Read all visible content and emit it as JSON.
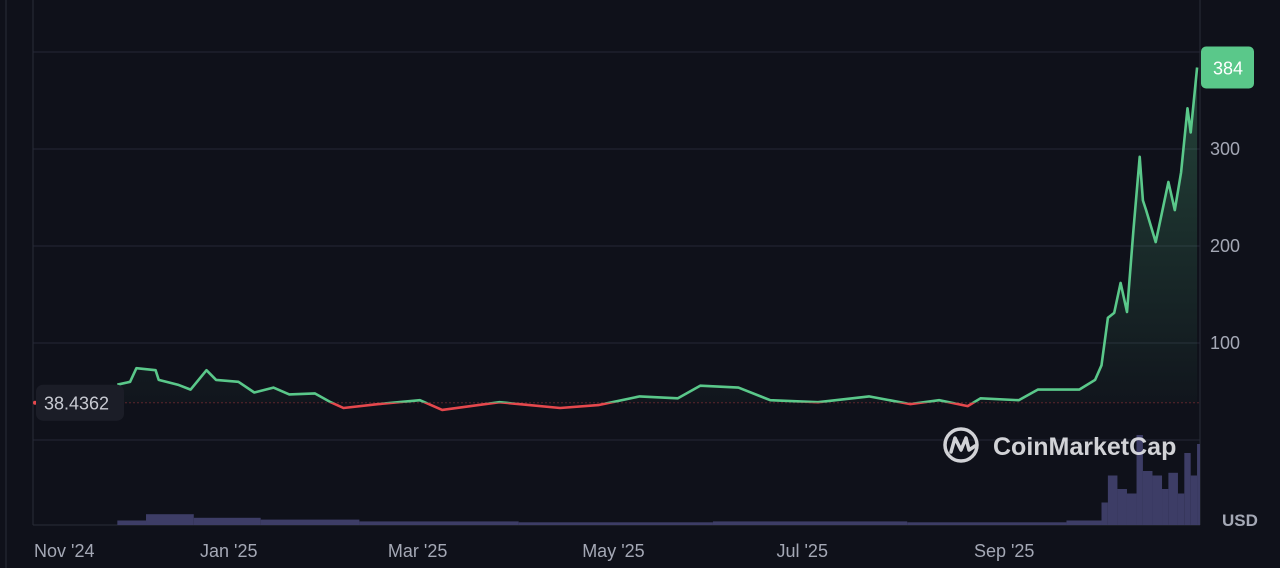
{
  "chart_data": {
    "type": "area",
    "title": "",
    "xlabel": "",
    "ylabel": "",
    "currency": "USD",
    "y_ticks": [
      100,
      200,
      300
    ],
    "ylim": [
      0,
      400
    ],
    "x_ticks": [
      {
        "date": "2024-11-01",
        "label": "Nov '24"
      },
      {
        "date": "2025-01-01",
        "label": "Jan '25"
      },
      {
        "date": "2025-03-01",
        "label": "Mar '25"
      },
      {
        "date": "2025-05-01",
        "label": "May '25"
      },
      {
        "date": "2025-07-01",
        "label": "Jul '25"
      },
      {
        "date": "2025-09-01",
        "label": "Sep '25"
      }
    ],
    "grid": true,
    "baseline_value": 38.4362,
    "baseline_label": "38.4362",
    "current_value": 384,
    "current_label": "384",
    "colors": {
      "up": "#5ac88a",
      "down": "#e5484d",
      "current_badge": "#5ac88a",
      "volume": "#3d3d66",
      "background": "#0f111a"
    },
    "series": [
      {
        "points": [
          [
            "2024-11-26",
            57
          ],
          [
            "2024-11-30",
            60
          ],
          [
            "2024-12-02",
            74
          ],
          [
            "2024-12-08",
            72
          ],
          [
            "2024-12-09",
            62
          ],
          [
            "2024-12-15",
            57
          ],
          [
            "2024-12-19",
            52
          ],
          [
            "2024-12-24",
            72
          ],
          [
            "2024-12-27",
            62
          ],
          [
            "2025-01-03",
            60
          ],
          [
            "2025-01-08",
            49
          ],
          [
            "2025-01-14",
            54
          ],
          [
            "2025-01-19",
            47
          ],
          [
            "2025-01-27",
            48
          ],
          [
            "2025-02-01",
            39
          ],
          [
            "2025-02-05",
            33
          ],
          [
            "2025-02-16",
            37
          ],
          [
            "2025-03-01",
            41
          ],
          [
            "2025-03-08",
            31
          ],
          [
            "2025-03-26",
            39
          ],
          [
            "2025-04-14",
            33
          ],
          [
            "2025-04-26",
            36
          ],
          [
            "2025-05-09",
            45
          ],
          [
            "2025-05-21",
            43
          ],
          [
            "2025-05-28",
            56
          ],
          [
            "2025-06-09",
            54
          ],
          [
            "2025-06-19",
            41
          ],
          [
            "2025-07-04",
            39
          ],
          [
            "2025-07-20",
            45
          ],
          [
            "2025-08-02",
            37
          ],
          [
            "2025-08-11",
            41
          ],
          [
            "2025-08-20",
            35
          ],
          [
            "2025-08-24",
            43
          ],
          [
            "2025-09-05",
            41
          ],
          [
            "2025-09-11",
            52
          ],
          [
            "2025-09-24",
            52
          ],
          [
            "2025-09-29",
            62
          ],
          [
            "2025-10-01",
            77
          ],
          [
            "2025-10-03",
            126
          ],
          [
            "2025-10-05",
            131
          ],
          [
            "2025-10-07",
            162
          ],
          [
            "2025-10-09",
            132
          ],
          [
            "2025-10-11",
            216
          ],
          [
            "2025-10-13",
            292
          ],
          [
            "2025-10-14",
            247
          ],
          [
            "2025-10-15",
            237
          ],
          [
            "2025-10-18",
            204
          ],
          [
            "2025-10-19",
            219
          ],
          [
            "2025-10-22",
            266
          ],
          [
            "2025-10-24",
            237
          ],
          [
            "2025-10-26",
            276
          ],
          [
            "2025-10-28",
            342
          ],
          [
            "2025-10-29",
            317
          ],
          [
            "2025-10-31",
            384
          ]
        ]
      }
    ],
    "volume_relative": [
      [
        "2024-11-26",
        0.05
      ],
      [
        "2024-12-05",
        0.12
      ],
      [
        "2024-12-20",
        0.08
      ],
      [
        "2025-01-10",
        0.06
      ],
      [
        "2025-02-10",
        0.04
      ],
      [
        "2025-04-01",
        0.03
      ],
      [
        "2025-06-01",
        0.04
      ],
      [
        "2025-08-01",
        0.03
      ],
      [
        "2025-09-20",
        0.05
      ],
      [
        "2025-10-01",
        0.25
      ],
      [
        "2025-10-03",
        0.55
      ],
      [
        "2025-10-06",
        0.4
      ],
      [
        "2025-10-09",
        0.35
      ],
      [
        "2025-10-12",
        1.0
      ],
      [
        "2025-10-14",
        0.6
      ],
      [
        "2025-10-17",
        0.55
      ],
      [
        "2025-10-20",
        0.4
      ],
      [
        "2025-10-22",
        0.58
      ],
      [
        "2025-10-25",
        0.35
      ],
      [
        "2025-10-27",
        0.8
      ],
      [
        "2025-10-29",
        0.55
      ],
      [
        "2025-10-31",
        0.9
      ]
    ]
  },
  "branding": {
    "watermark": "CoinMarketCap"
  }
}
